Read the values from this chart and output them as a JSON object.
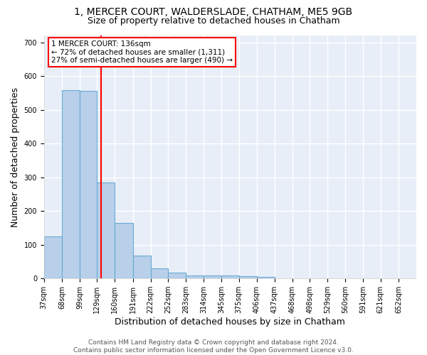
{
  "title_line1": "1, MERCER COURT, WALDERSLADE, CHATHAM, ME5 9GB",
  "title_line2": "Size of property relative to detached houses in Chatham",
  "xlabel": "Distribution of detached houses by size in Chatham",
  "ylabel": "Number of detached properties",
  "bar_values": [
    125,
    557,
    555,
    285,
    165,
    68,
    30,
    18,
    9,
    9,
    9,
    7,
    5,
    0,
    0,
    0,
    0,
    0,
    0,
    0,
    0
  ],
  "xtick_labels": [
    "37sqm",
    "68sqm",
    "99sqm",
    "129sqm",
    "160sqm",
    "191sqm",
    "222sqm",
    "252sqm",
    "283sqm",
    "314sqm",
    "345sqm",
    "375sqm",
    "406sqm",
    "437sqm",
    "468sqm",
    "498sqm",
    "529sqm",
    "560sqm",
    "591sqm",
    "621sqm",
    "652sqm"
  ],
  "bin_edges": [
    37,
    68,
    99,
    129,
    160,
    191,
    222,
    252,
    283,
    314,
    345,
    375,
    406,
    437,
    468,
    498,
    529,
    560,
    591,
    621,
    652,
    683
  ],
  "bar_color": "#b8d0ea",
  "bar_edge_color": "#6aaad4",
  "bg_color": "#e8eef8",
  "grid_color": "#ffffff",
  "red_line_x": 136,
  "ylim": [
    0,
    720
  ],
  "yticks": [
    0,
    100,
    200,
    300,
    400,
    500,
    600,
    700
  ],
  "annotation_text_line1": "1 MERCER COURT: 136sqm",
  "annotation_text_line2": "← 72% of detached houses are smaller (1,311)",
  "annotation_text_line3": "27% of semi-detached houses are larger (490) →",
  "footer_text": "Contains HM Land Registry data © Crown copyright and database right 2024.\nContains public sector information licensed under the Open Government Licence v3.0.",
  "title_fontsize": 10,
  "subtitle_fontsize": 9,
  "tick_label_fontsize": 7,
  "axis_label_fontsize": 9,
  "footer_fontsize": 6.5
}
